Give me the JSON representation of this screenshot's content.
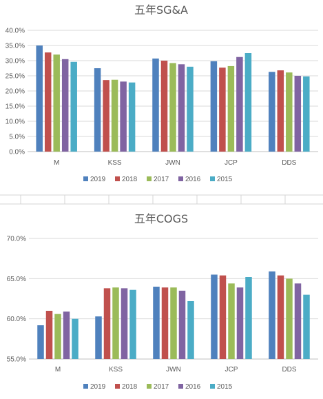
{
  "chart_data": [
    {
      "type": "bar",
      "title": "五年SG&A",
      "categories": [
        "M",
        "KSS",
        "JWN",
        "JCP",
        "DDS"
      ],
      "ylim": [
        0,
        40
      ],
      "yticks": [
        "0.0%",
        "5.0%",
        "10.0%",
        "15.0%",
        "20.0%",
        "25.0%",
        "30.0%",
        "35.0%",
        "40.0%"
      ],
      "ytick_values": [
        0,
        5,
        10,
        15,
        20,
        25,
        30,
        35,
        40
      ],
      "grid": true,
      "legend_position": "bottom",
      "series": [
        {
          "name": "2019",
          "color": "#4f81bd",
          "values": [
            35.0,
            27.5,
            30.7,
            29.8,
            26.3
          ]
        },
        {
          "name": "2018",
          "color": "#c0504d",
          "values": [
            32.7,
            23.6,
            30.0,
            27.7,
            26.8
          ]
        },
        {
          "name": "2017",
          "color": "#9bbb59",
          "values": [
            32.0,
            23.7,
            29.2,
            28.2,
            26.1
          ]
        },
        {
          "name": "2016",
          "color": "#8064a2",
          "values": [
            30.5,
            23.1,
            28.8,
            31.2,
            25.0
          ]
        },
        {
          "name": "2015",
          "color": "#4bacc6",
          "values": [
            29.6,
            22.8,
            28.0,
            32.5,
            24.8
          ]
        }
      ]
    },
    {
      "type": "bar",
      "title": "五年COGS",
      "categories": [
        "M",
        "KSS",
        "JWN",
        "JCP",
        "DDS"
      ],
      "ylim": [
        55,
        70
      ],
      "yticks": [
        "55.0%",
        "60.0%",
        "65.0%",
        "70.0%"
      ],
      "ytick_values": [
        55,
        60,
        65,
        70
      ],
      "grid": true,
      "legend_position": "bottom",
      "series": [
        {
          "name": "2019",
          "color": "#4f81bd",
          "values": [
            59.2,
            60.3,
            64.0,
            65.5,
            65.9
          ]
        },
        {
          "name": "2018",
          "color": "#c0504d",
          "values": [
            61.0,
            63.8,
            63.9,
            65.4,
            65.4
          ]
        },
        {
          "name": "2017",
          "color": "#9bbb59",
          "values": [
            60.6,
            63.9,
            63.9,
            64.4,
            65.0
          ]
        },
        {
          "name": "2016",
          "color": "#8064a2",
          "values": [
            60.9,
            63.8,
            63.5,
            63.9,
            64.4
          ]
        },
        {
          "name": "2015",
          "color": "#4bacc6",
          "values": [
            60.0,
            63.6,
            62.2,
            65.2,
            63.0
          ]
        }
      ]
    }
  ]
}
